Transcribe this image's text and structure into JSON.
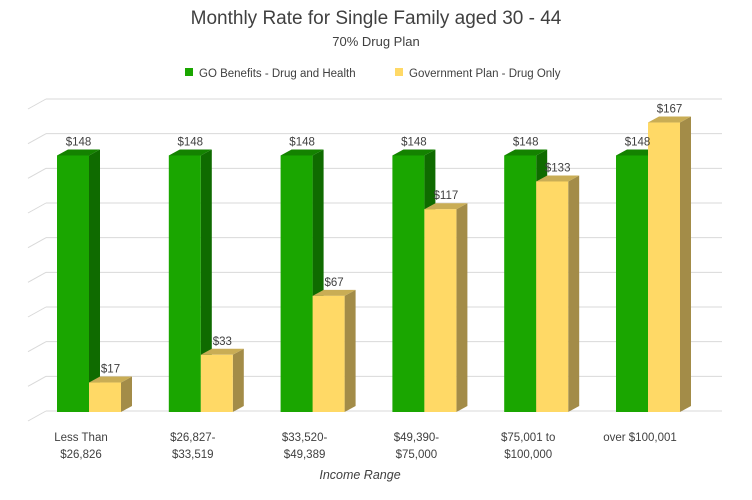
{
  "chart_data": {
    "type": "bar",
    "title": "Monthly Rate for Single Family aged 30 - 44",
    "subtitle": "70% Drug Plan",
    "xlabel": "Income Range",
    "ylabel": "",
    "categories": [
      [
        "Less Than",
        "$26,826"
      ],
      [
        "$26,827-",
        "$33,519"
      ],
      [
        "$33,520-",
        "$49,389"
      ],
      [
        "$49,390-",
        "$75,000"
      ],
      [
        "$75,001 to",
        "$100,000"
      ],
      [
        "over $100,001"
      ]
    ],
    "series": [
      {
        "name": "GO Benefits - Drug and Health",
        "color": "#1aa600",
        "side_color": "#0f6b00",
        "top_color": "#148200",
        "values": [
          148,
          148,
          148,
          148,
          148,
          148
        ],
        "labels": [
          "$148",
          "$148",
          "$148",
          "$148",
          "$148",
          "$148"
        ]
      },
      {
        "name": "Government Plan - Drug Only",
        "color": "#ffd966",
        "side_color": "#a38c48",
        "top_color": "#c9ad55",
        "values": [
          17,
          33,
          67,
          117,
          133,
          167
        ],
        "labels": [
          "$17",
          "$33",
          "$67",
          "$117",
          "$133",
          "$167"
        ]
      }
    ],
    "ylim": [
      0,
      180
    ],
    "grid": true,
    "legend_position": "top"
  }
}
